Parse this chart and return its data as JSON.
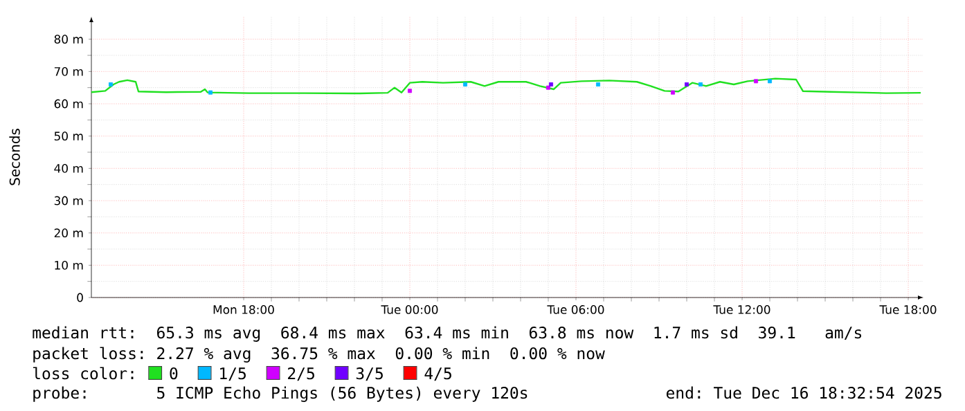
{
  "chart_data": {
    "type": "line",
    "ylabel": "Seconds",
    "xlim": [
      "2025-12-15T12:30",
      "2025-12-16T18:33"
    ],
    "ylim": [
      0,
      87
    ],
    "xticks": [
      {
        "value": "2025-12-15T18:00",
        "label": "Mon 18:00"
      },
      {
        "value": "2025-12-16T00:00",
        "label": "Tue 00:00"
      },
      {
        "value": "2025-12-16T06:00",
        "label": "Tue 06:00"
      },
      {
        "value": "2025-12-16T12:00",
        "label": "Tue 12:00"
      },
      {
        "value": "2025-12-16T18:00",
        "label": "Tue 18:00"
      }
    ],
    "yticks": [
      0,
      {
        "value": 10,
        "label": "10 m"
      },
      {
        "value": 20,
        "label": "20 m"
      },
      {
        "value": 30,
        "label": "30 m"
      },
      {
        "value": 40,
        "label": "40 m"
      },
      {
        "value": 50,
        "label": "50 m"
      },
      {
        "value": 60,
        "label": "60 m"
      },
      {
        "value": 70,
        "label": "70 m"
      },
      {
        "value": 80,
        "label": "80 m"
      }
    ],
    "grid": true,
    "legend": "bottom",
    "legend_title": "loss color:",
    "series": [
      {
        "name": "0",
        "color": "#20e020",
        "x": [
          "2025-12-15T12:30",
          "2025-12-15T13:00",
          "2025-12-15T13:18",
          "2025-12-15T13:30",
          "2025-12-15T13:48",
          "2025-12-15T14:06",
          "2025-12-15T14:12",
          "2025-12-15T15:12",
          "2025-12-15T16:27",
          "2025-12-15T16:36",
          "2025-12-15T16:42",
          "2025-12-15T18:12",
          "2025-12-15T20:12",
          "2025-12-15T22:12",
          "2025-12-15T23:12",
          "2025-12-15T23:27",
          "2025-12-15T23:42",
          "2025-12-16T00:00",
          "2025-12-16T00:27",
          "2025-12-16T01:12",
          "2025-12-16T02:12",
          "2025-12-16T02:42",
          "2025-12-16T03:12",
          "2025-12-16T04:12",
          "2025-12-16T04:42",
          "2025-12-16T05:12",
          "2025-12-16T05:27",
          "2025-12-16T06:12",
          "2025-12-16T07:12",
          "2025-12-16T08:12",
          "2025-12-16T08:42",
          "2025-12-16T09:12",
          "2025-12-16T09:42",
          "2025-12-16T10:12",
          "2025-12-16T10:42",
          "2025-12-16T11:12",
          "2025-12-16T11:42",
          "2025-12-16T12:12",
          "2025-12-16T13:12",
          "2025-12-16T13:57",
          "2025-12-16T14:12",
          "2025-12-16T15:12",
          "2025-12-16T16:12",
          "2025-12-16T17:12",
          "2025-12-16T18:27"
        ],
        "values": [
          63.6,
          64.0,
          66.0,
          66.8,
          67.3,
          66.8,
          63.8,
          63.6,
          63.7,
          64.5,
          63.5,
          63.3,
          63.3,
          63.2,
          63.4,
          65.0,
          63.5,
          66.5,
          66.8,
          66.5,
          66.8,
          65.5,
          66.8,
          66.8,
          65.5,
          64.5,
          66.5,
          67.0,
          67.2,
          66.8,
          65.5,
          64.0,
          63.8,
          66.5,
          65.5,
          66.8,
          66.0,
          67.0,
          67.8,
          67.5,
          63.9,
          63.7,
          63.5,
          63.3,
          63.4
        ]
      },
      {
        "name": "1/5",
        "type": "scatter",
        "marker": "square",
        "color": "#00b8ff",
        "x": [
          "2025-12-15T13:12",
          "2025-12-15T16:48",
          "2025-12-16T02:00",
          "2025-12-16T06:48",
          "2025-12-16T10:30",
          "2025-12-16T13:00"
        ],
        "values": [
          66.0,
          63.5,
          66.0,
          66.0,
          66.0,
          67.0
        ]
      },
      {
        "name": "2/5",
        "type": "scatter",
        "marker": "square",
        "color": "#d000ff",
        "x": [
          "2025-12-16T00:00",
          "2025-12-16T05:00",
          "2025-12-16T09:30",
          "2025-12-16T12:30"
        ],
        "values": [
          64.0,
          65.0,
          63.5,
          67.0
        ]
      },
      {
        "name": "3/5",
        "type": "scatter",
        "marker": "square",
        "color": "#7000ff",
        "x": [
          "2025-12-16T05:06",
          "2025-12-16T10:00"
        ],
        "values": [
          66.0,
          66.0
        ]
      },
      {
        "name": "4/5",
        "color": "#ff0000"
      }
    ],
    "annotations": [
      "median rtt:  65.3 ms avg  68.4 ms max  63.4 ms min  63.8 ms now  1.7 ms sd  39.1   am/s",
      "packet loss: 2.27 % avg  36.75 % max  0.00 % min  0.00 % now",
      "probe:       5 ICMP Echo Pings (56 Bytes) every 120s",
      "end: Tue Dec 16 18:32:54 2025"
    ]
  }
}
